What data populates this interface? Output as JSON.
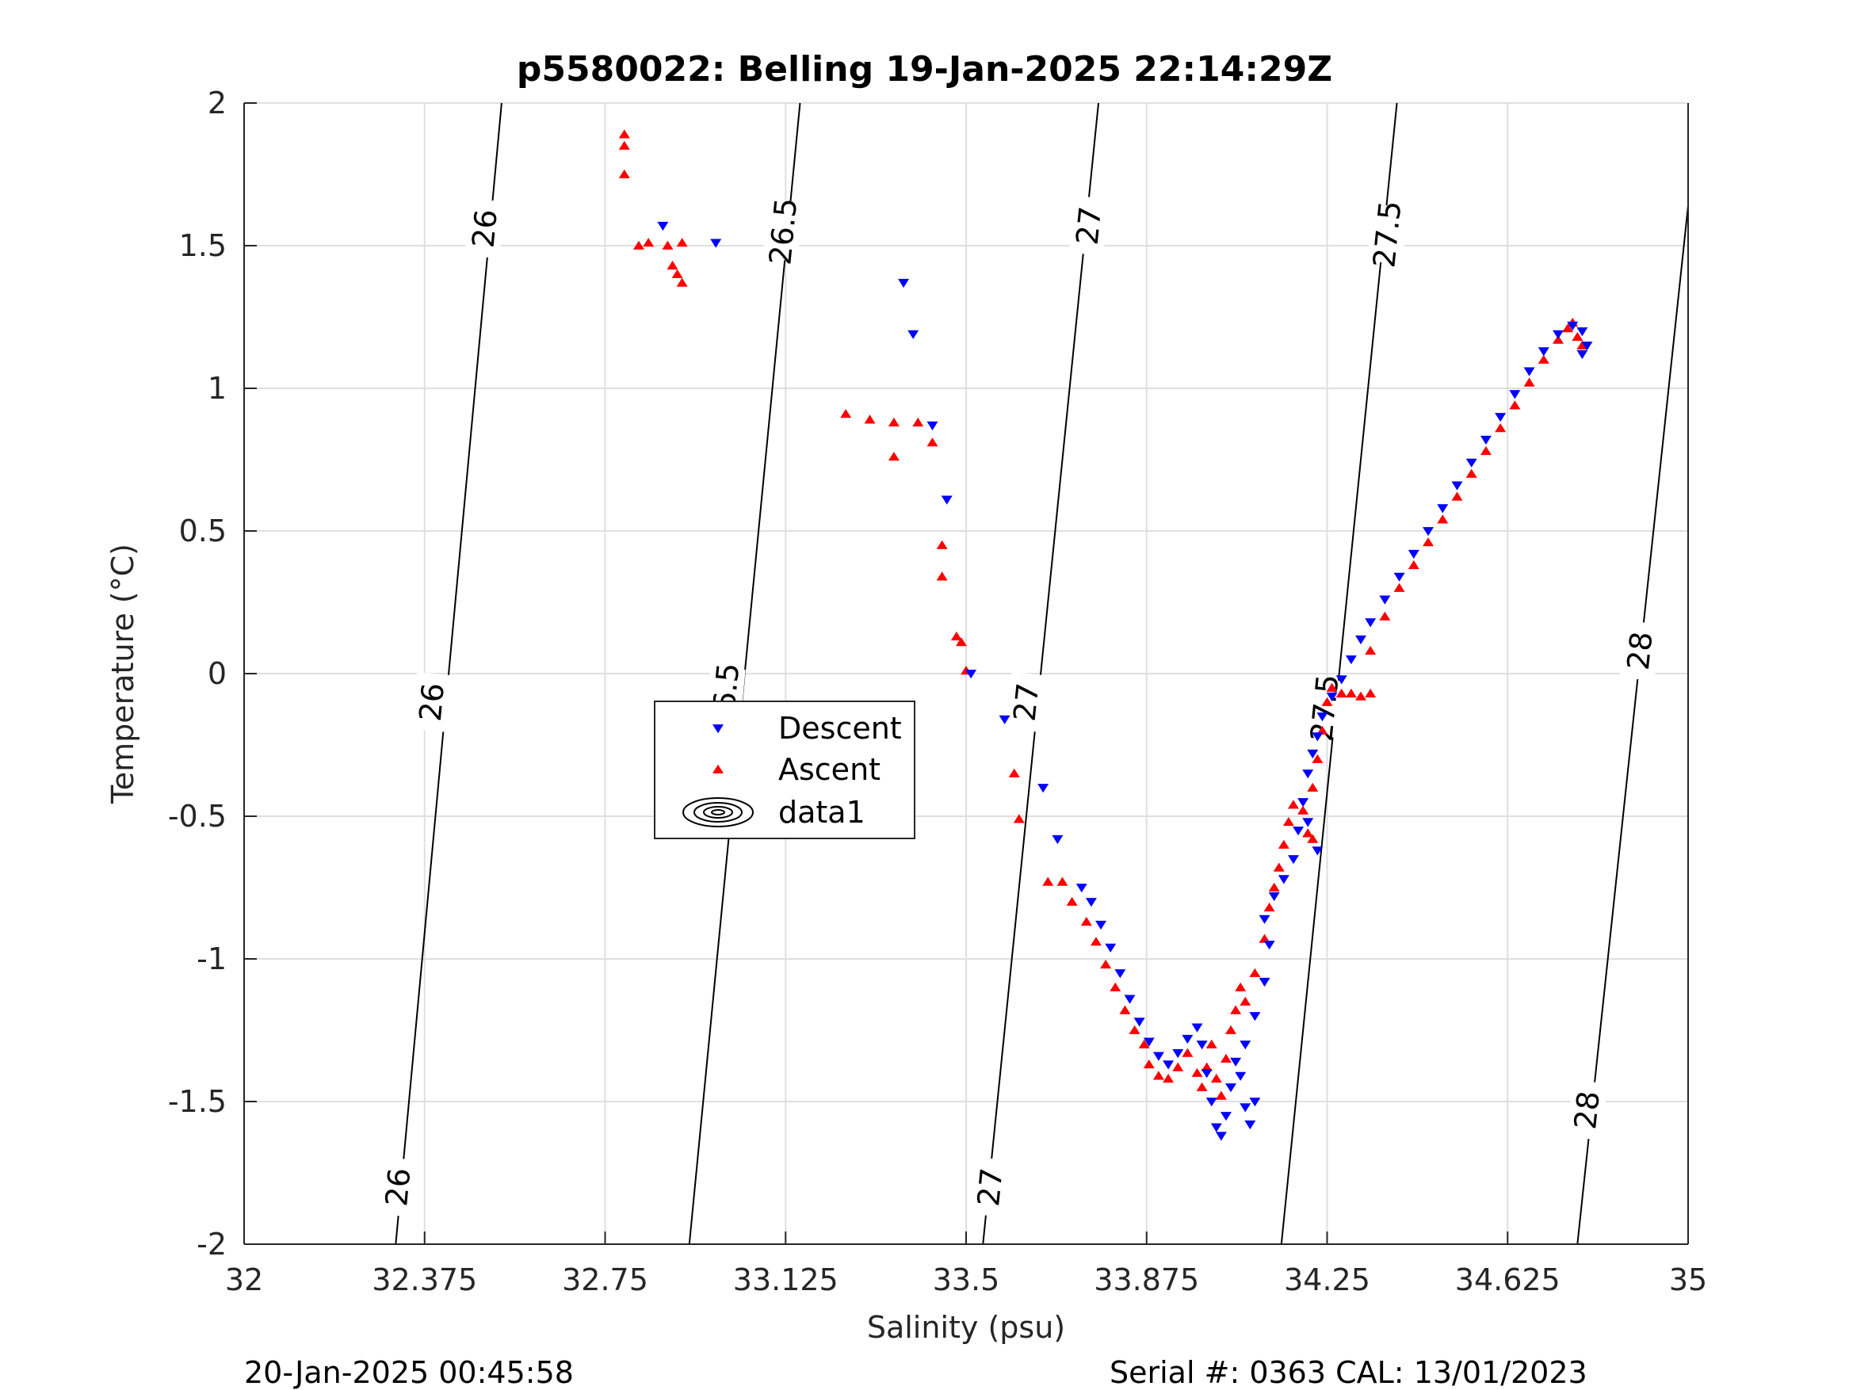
{
  "page": {
    "title": "p5580022: Belling 19-Jan-2025 22:14:29Z",
    "footer_left": "20-Jan-2025 00:45:58",
    "footer_right": "Serial #: 0363  CAL: 13/01/2023"
  },
  "chart_data": {
    "type": "scatter",
    "title": "p5580022: Belling 19-Jan-2025 22:14:29Z",
    "xlabel": "Salinity (psu)",
    "ylabel": "Temperature (°C)",
    "xlim": [
      32,
      35
    ],
    "ylim": [
      -2,
      2
    ],
    "x_ticks": [
      32,
      32.375,
      32.75,
      33.125,
      33.5,
      33.875,
      34.25,
      34.625,
      35
    ],
    "x_tick_labels": [
      "32",
      "32.375",
      "32.75",
      "33.125",
      "33.5",
      "33.875",
      "34.25",
      "34.625",
      "35"
    ],
    "y_ticks": [
      2,
      1.5,
      1,
      0.5,
      0,
      -0.5,
      -1,
      -1.5,
      -2
    ],
    "y_tick_labels": [
      "2",
      "1.5",
      "1",
      "0.5",
      "0",
      "-0.5",
      "-1",
      "-1.5",
      "-2"
    ],
    "grid": true,
    "legend": {
      "placement": "center-left",
      "entries": [
        "Descent",
        "Ascent",
        "data1"
      ]
    },
    "colors": {
      "descent": "#0000ff",
      "ascent": "#ff0000",
      "contour": "#000000",
      "grid": "#dfdfdf",
      "axis": "#262626"
    },
    "isopycnals": [
      {
        "label": "26",
        "bottom": [
          32.315,
          -2
        ],
        "top": [
          32.535,
          2
        ],
        "label_positions": [
          [
            32.32,
            -1.8
          ],
          [
            32.39,
            -0.1
          ],
          [
            32.5,
            1.56
          ]
        ]
      },
      {
        "label": "26.5",
        "bottom": [
          32.925,
          -2
        ],
        "top": [
          33.155,
          2
        ],
        "label_positions": [
          [
            33.0,
            -0.08
          ],
          [
            33.12,
            1.55
          ]
        ]
      },
      {
        "label": "27",
        "bottom": [
          33.535,
          -2
        ],
        "top": [
          33.775,
          2
        ],
        "label_positions": [
          [
            33.55,
            -1.8
          ],
          [
            33.625,
            -0.1
          ],
          [
            33.755,
            1.57
          ]
        ]
      },
      {
        "label": "27.5",
        "bottom": [
          34.155,
          -2
        ],
        "top": [
          34.395,
          2
        ],
        "label_positions": [
          [
            34.245,
            -0.12
          ],
          [
            34.375,
            1.54
          ]
        ]
      },
      {
        "label": "28",
        "bottom": [
          34.77,
          -2
        ],
        "top": [
          35.0,
          1.64
        ],
        "label_positions": [
          [
            34.79,
            -1.53
          ],
          [
            34.9,
            0.08
          ]
        ]
      }
    ],
    "series": [
      {
        "name": "Descent",
        "marker": "triangle-down",
        "color": "#0000ff",
        "points": [
          [
            32.87,
            1.57
          ],
          [
            32.98,
            1.51
          ],
          [
            33.37,
            1.37
          ],
          [
            33.39,
            1.19
          ],
          [
            33.43,
            0.87
          ],
          [
            33.46,
            0.61
          ],
          [
            33.51,
            0.0
          ],
          [
            33.58,
            -0.16
          ],
          [
            33.66,
            -0.4
          ],
          [
            33.69,
            -0.58
          ],
          [
            33.74,
            -0.75
          ],
          [
            33.76,
            -0.8
          ],
          [
            33.78,
            -0.88
          ],
          [
            33.8,
            -0.96
          ],
          [
            33.82,
            -1.05
          ],
          [
            33.84,
            -1.14
          ],
          [
            33.86,
            -1.22
          ],
          [
            33.88,
            -1.29
          ],
          [
            33.9,
            -1.34
          ],
          [
            33.92,
            -1.37
          ],
          [
            33.94,
            -1.33
          ],
          [
            33.96,
            -1.28
          ],
          [
            33.98,
            -1.24
          ],
          [
            33.99,
            -1.3
          ],
          [
            34.0,
            -1.4
          ],
          [
            34.01,
            -1.5
          ],
          [
            34.02,
            -1.59
          ],
          [
            34.03,
            -1.62
          ],
          [
            34.04,
            -1.55
          ],
          [
            34.05,
            -1.45
          ],
          [
            34.06,
            -1.36
          ],
          [
            34.07,
            -1.41
          ],
          [
            34.08,
            -1.52
          ],
          [
            34.09,
            -1.58
          ],
          [
            34.1,
            -1.5
          ],
          [
            34.08,
            -1.3
          ],
          [
            34.1,
            -1.2
          ],
          [
            34.12,
            -1.08
          ],
          [
            34.13,
            -0.95
          ],
          [
            34.12,
            -0.86
          ],
          [
            34.14,
            -0.78
          ],
          [
            34.16,
            -0.72
          ],
          [
            34.18,
            -0.65
          ],
          [
            34.19,
            -0.55
          ],
          [
            34.2,
            -0.45
          ],
          [
            34.21,
            -0.35
          ],
          [
            34.22,
            -0.28
          ],
          [
            34.23,
            -0.22
          ],
          [
            34.24,
            -0.15
          ],
          [
            34.26,
            -0.08
          ],
          [
            34.28,
            -0.02
          ],
          [
            34.3,
            0.05
          ],
          [
            34.32,
            0.12
          ],
          [
            34.34,
            0.18
          ],
          [
            34.37,
            0.26
          ],
          [
            34.4,
            0.34
          ],
          [
            34.43,
            0.42
          ],
          [
            34.46,
            0.5
          ],
          [
            34.49,
            0.58
          ],
          [
            34.52,
            0.66
          ],
          [
            34.55,
            0.74
          ],
          [
            34.58,
            0.82
          ],
          [
            34.61,
            0.9
          ],
          [
            34.64,
            0.98
          ],
          [
            34.67,
            1.06
          ],
          [
            34.7,
            1.13
          ],
          [
            34.73,
            1.19
          ],
          [
            34.76,
            1.22
          ],
          [
            34.78,
            1.2
          ],
          [
            34.79,
            1.15
          ],
          [
            34.78,
            1.12
          ],
          [
            34.21,
            -0.52
          ],
          [
            34.23,
            -0.62
          ]
        ]
      },
      {
        "name": "Ascent",
        "marker": "triangle-up",
        "color": "#ff0000",
        "points": [
          [
            32.79,
            1.89
          ],
          [
            32.79,
            1.85
          ],
          [
            32.79,
            1.75
          ],
          [
            32.82,
            1.5
          ],
          [
            32.84,
            1.51
          ],
          [
            32.88,
            1.5
          ],
          [
            32.89,
            1.43
          ],
          [
            32.9,
            1.4
          ],
          [
            32.91,
            1.37
          ],
          [
            32.91,
            1.51
          ],
          [
            33.25,
            0.91
          ],
          [
            33.3,
            0.89
          ],
          [
            33.35,
            0.88
          ],
          [
            33.35,
            0.76
          ],
          [
            33.4,
            0.88
          ],
          [
            33.43,
            0.81
          ],
          [
            33.45,
            0.45
          ],
          [
            33.45,
            0.34
          ],
          [
            33.48,
            0.13
          ],
          [
            33.49,
            0.11
          ],
          [
            33.5,
            0.01
          ],
          [
            33.6,
            -0.35
          ],
          [
            33.61,
            -0.51
          ],
          [
            33.67,
            -0.73
          ],
          [
            33.7,
            -0.73
          ],
          [
            33.72,
            -0.8
          ],
          [
            33.75,
            -0.87
          ],
          [
            33.77,
            -0.94
          ],
          [
            33.79,
            -1.02
          ],
          [
            33.81,
            -1.1
          ],
          [
            33.83,
            -1.18
          ],
          [
            33.85,
            -1.25
          ],
          [
            33.87,
            -1.3
          ],
          [
            33.88,
            -1.37
          ],
          [
            33.9,
            -1.41
          ],
          [
            33.92,
            -1.42
          ],
          [
            33.94,
            -1.38
          ],
          [
            33.96,
            -1.33
          ],
          [
            33.98,
            -1.4
          ],
          [
            33.99,
            -1.45
          ],
          [
            34.0,
            -1.38
          ],
          [
            34.01,
            -1.3
          ],
          [
            34.02,
            -1.42
          ],
          [
            34.03,
            -1.48
          ],
          [
            34.04,
            -1.35
          ],
          [
            34.05,
            -1.25
          ],
          [
            34.06,
            -1.18
          ],
          [
            34.07,
            -1.1
          ],
          [
            34.08,
            -1.15
          ],
          [
            34.1,
            -1.05
          ],
          [
            34.12,
            -0.93
          ],
          [
            34.13,
            -0.82
          ],
          [
            34.14,
            -0.75
          ],
          [
            34.15,
            -0.68
          ],
          [
            34.16,
            -0.6
          ],
          [
            34.17,
            -0.52
          ],
          [
            34.18,
            -0.46
          ],
          [
            34.2,
            -0.48
          ],
          [
            34.21,
            -0.56
          ],
          [
            34.22,
            -0.58
          ],
          [
            34.22,
            -0.4
          ],
          [
            34.23,
            -0.3
          ],
          [
            34.24,
            -0.2
          ],
          [
            34.25,
            -0.1
          ],
          [
            34.26,
            -0.05
          ],
          [
            34.28,
            -0.07
          ],
          [
            34.3,
            -0.07
          ],
          [
            34.32,
            -0.08
          ],
          [
            34.34,
            -0.07
          ],
          [
            34.34,
            0.08
          ],
          [
            34.37,
            0.2
          ],
          [
            34.4,
            0.3
          ],
          [
            34.43,
            0.38
          ],
          [
            34.46,
            0.46
          ],
          [
            34.49,
            0.54
          ],
          [
            34.52,
            0.62
          ],
          [
            34.55,
            0.7
          ],
          [
            34.58,
            0.78
          ],
          [
            34.61,
            0.86
          ],
          [
            34.64,
            0.94
          ],
          [
            34.67,
            1.02
          ],
          [
            34.7,
            1.1
          ],
          [
            34.73,
            1.17
          ],
          [
            34.75,
            1.21
          ],
          [
            34.76,
            1.23
          ],
          [
            34.77,
            1.18
          ],
          [
            34.78,
            1.15
          ]
        ]
      }
    ]
  }
}
